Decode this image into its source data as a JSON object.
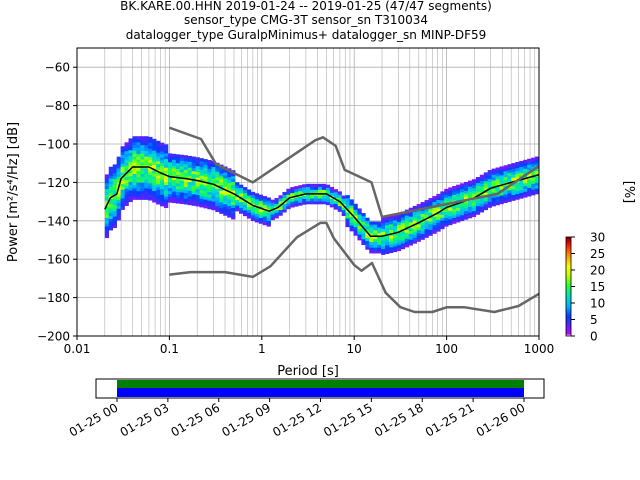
{
  "chart_data": [
    {
      "type": "heatmap",
      "title": [
        "BK.KARE.00.HHN   2019-01-24 -- 2019-01-25  (47/47 segments)",
        "sensor_type CMG-3T sensor_sn T310034",
        "datalogger_type GuralpMinimus+ datalogger_sn MINP-DF59"
      ],
      "xlabel": "Period [s]",
      "ylabel": "Power [m²/s⁴/Hz] [dB]",
      "x_scale": "log",
      "xlim": [
        0.01,
        1000
      ],
      "ylim": [
        -200,
        -50
      ],
      "x_ticks": [
        0.01,
        0.1,
        1,
        10,
        100,
        1000
      ],
      "x_tick_labels": [
        "0.01",
        "0.1",
        "1",
        "10",
        "100",
        "1000"
      ],
      "y_ticks": [
        -200,
        -180,
        -160,
        -140,
        -120,
        -100,
        -80,
        -60
      ],
      "y_tick_labels": [
        "−200",
        "−180",
        "−160",
        "−140",
        "−120",
        "−100",
        "−80",
        "−60"
      ],
      "grid": true,
      "colorbar": {
        "label": "[%]",
        "range": [
          0,
          30
        ],
        "ticks": [
          0,
          5,
          10,
          15,
          20,
          25,
          30
        ],
        "tick_labels": [
          "0",
          "5",
          "10",
          "15",
          "20",
          "25",
          "30"
        ],
        "colormap": [
          "#ffffff",
          "#c800ff",
          "#6020ff",
          "#0040ff",
          "#00b0ff",
          "#00e0c0",
          "#20ff40",
          "#b0ff00",
          "#ffff00",
          "#ffa000",
          "#ff3000",
          "#c00000",
          "#800000"
        ]
      },
      "series": [
        {
          "name": "",
          "role": "mode",
          "color": "#000000",
          "points": [
            [
              0.02,
              -134
            ],
            [
              0.023,
              -128
            ],
            [
              0.027,
              -126
            ],
            [
              0.03,
              -118
            ],
            [
              0.04,
              -112
            ],
            [
              0.06,
              -112
            ],
            [
              0.08,
              -115
            ],
            [
              0.1,
              -117
            ],
            [
              0.15,
              -118
            ],
            [
              0.2,
              -119
            ],
            [
              0.3,
              -121
            ],
            [
              0.5,
              -126
            ],
            [
              0.8,
              -132
            ],
            [
              1.2,
              -135
            ],
            [
              1.5,
              -133
            ],
            [
              2,
              -128
            ],
            [
              3,
              -126
            ],
            [
              5,
              -126
            ],
            [
              7,
              -130
            ],
            [
              10,
              -138
            ],
            [
              15,
              -148
            ],
            [
              20,
              -148
            ],
            [
              30,
              -146
            ],
            [
              50,
              -141
            ],
            [
              80,
              -136
            ],
            [
              100,
              -133
            ],
            [
              200,
              -128
            ],
            [
              300,
              -123
            ],
            [
              500,
              -120
            ],
            [
              1000,
              -116
            ]
          ]
        },
        {
          "name": "",
          "role": "noise-model-high",
          "color": "#666666",
          "points": [
            [
              0.1,
              -91.5
            ],
            [
              0.22,
              -97.4
            ],
            [
              0.32,
              -110.5
            ],
            [
              0.8,
              -120
            ],
            [
              3.8,
              -98
            ],
            [
              4.6,
              -96.5
            ],
            [
              6.3,
              -101
            ],
            [
              7.9,
              -113.5
            ],
            [
              15.4,
              -120
            ],
            [
              20,
              -138
            ],
            [
              354.8,
              -126
            ],
            [
              1000,
              -111.5
            ]
          ]
        },
        {
          "name": "",
          "role": "noise-model-low",
          "color": "#666666",
          "points": [
            [
              0.1,
              -168
            ],
            [
              0.17,
              -166.7
            ],
            [
              0.4,
              -166.7
            ],
            [
              0.8,
              -169.2
            ],
            [
              1.24,
              -163.7
            ],
            [
              2.4,
              -148.6
            ],
            [
              4.3,
              -141.1
            ],
            [
              5,
              -141.1
            ],
            [
              6,
              -149
            ],
            [
              10,
              -163
            ],
            [
              12,
              -166
            ],
            [
              15.6,
              -162
            ],
            [
              21.9,
              -177.5
            ],
            [
              31.6,
              -185
            ],
            [
              45,
              -187.5
            ],
            [
              70,
              -187.5
            ],
            [
              101,
              -185
            ],
            [
              154,
              -185
            ],
            [
              328,
              -187.5
            ],
            [
              600,
              -184.4
            ],
            [
              1000,
              -178
            ]
          ]
        }
      ]
    },
    {
      "type": "timeline",
      "x_ticks": [
        "01-25 00",
        "01-25 03",
        "01-25 06",
        "01-25 09",
        "01-25 12",
        "01-25 15",
        "01-25 18",
        "01-25 21",
        "01-26 00"
      ],
      "data_coverage": {
        "start": "01-25 00",
        "end": "01-26 00",
        "color": "#008000"
      },
      "psd_coverage": {
        "start": "01-25 00",
        "end": "01-26 00",
        "color": "#0000ff"
      }
    }
  ]
}
